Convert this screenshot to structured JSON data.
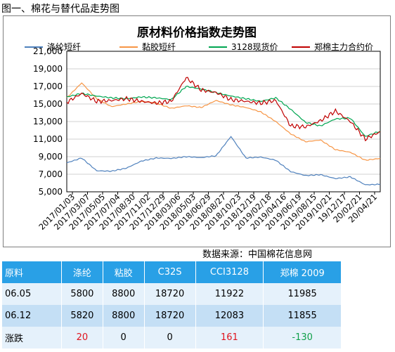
{
  "caption": "图一、棉花与替代品走势图",
  "source": "数据来源：中国棉花信息网",
  "chart_data": {
    "type": "line",
    "title": "原材料价格指数走势图",
    "ylim": [
      5000,
      21000
    ],
    "yticks": [
      "5,000",
      "7,000",
      "9,000",
      "11,000",
      "13,000",
      "15,000",
      "17,000",
      "19,000",
      "21,000"
    ],
    "xticks": [
      "2017/01/03",
      "2017/03/07",
      "2017/05/05",
      "2017/07/04",
      "2017/08/30",
      "2017/11/02",
      "2017/12/29",
      "2018/03/06",
      "2018/05/03",
      "2018/06/29",
      "2018/08/27",
      "2018/10/23",
      "2018/12/19",
      "2019/02/18",
      "2019/04/16",
      "2019/06/19",
      "2019/08/15",
      "2019/10/21",
      "19/12/17",
      "20/02/21",
      "20/04/21"
    ],
    "grid": "horizontal",
    "legend_position": "top",
    "series": [
      {
        "name": "涤纶短纤",
        "color": "#4f81bd",
        "values": [
          8300,
          8850,
          7400,
          7350,
          7700,
          8500,
          8850,
          8800,
          9000,
          8900,
          9100,
          11300,
          8850,
          8950,
          8600,
          7300,
          6850,
          6950,
          6500,
          6700,
          5800,
          5850
        ]
      },
      {
        "name": "黏胶短纤",
        "color": "#f79646",
        "values": [
          15700,
          17400,
          15600,
          14700,
          15000,
          15300,
          15100,
          14500,
          14800,
          14600,
          15400,
          14900,
          14600,
          14100,
          13000,
          11600,
          10700,
          10900,
          9800,
          9500,
          8600,
          8800
        ]
      },
      {
        "name": "3128现货价",
        "color": "#00a651",
        "values": [
          15800,
          16200,
          15900,
          15700,
          15600,
          15800,
          15700,
          15500,
          17000,
          16700,
          16300,
          15900,
          15600,
          15300,
          15700,
          14400,
          12900,
          12500,
          13300,
          13400,
          11300,
          11922
        ]
      },
      {
        "name": "郑棉主力合约价",
        "color": "#c00000",
        "values": [
          15200,
          16200,
          15300,
          15400,
          15600,
          15300,
          15100,
          15300,
          18000,
          16600,
          16300,
          15500,
          15300,
          15100,
          15400,
          12500,
          12400,
          13100,
          14200,
          13000,
          11000,
          11855
        ]
      }
    ]
  },
  "table": {
    "headers": [
      "原料",
      "涤纶",
      "粘胶",
      "C32S",
      "CCI3128",
      "郑棉 2009"
    ],
    "rows": [
      [
        "06.05",
        "5800",
        "8800",
        "18720",
        "11922",
        "11985"
      ],
      [
        "06.12",
        "5820",
        "8800",
        "18720",
        "12083",
        "11855"
      ],
      [
        "涨跌",
        "20",
        "0",
        "0",
        "161",
        "-130"
      ]
    ],
    "change_colors": [
      "",
      "#e0141e",
      "#000000",
      "#000000",
      "#e0141e",
      "#10a04a"
    ]
  }
}
